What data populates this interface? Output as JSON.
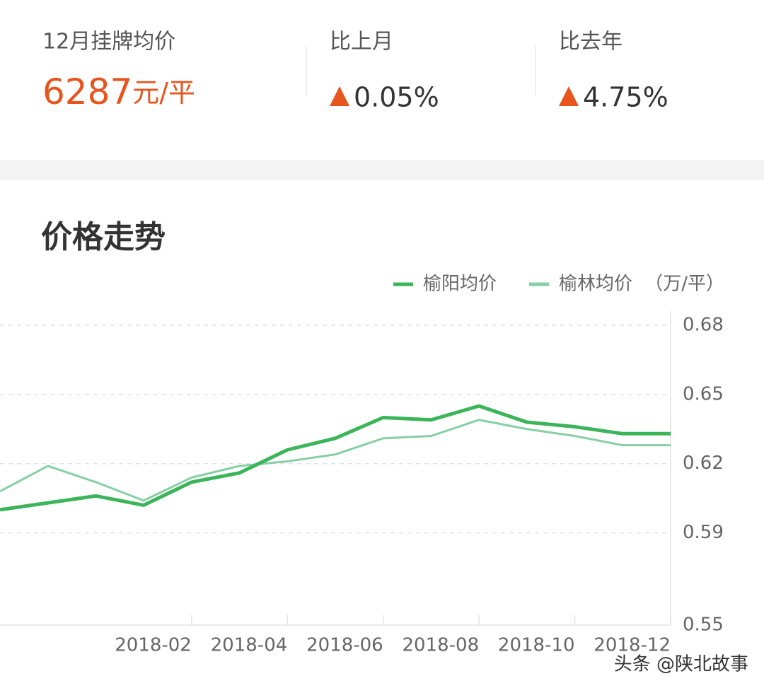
{
  "header": {
    "stats": [
      {
        "label": "12月挂牌均价",
        "value": "6287",
        "unit": "元/平"
      },
      {
        "label": "比上月",
        "value": "0.05%"
      },
      {
        "label": "比去年",
        "value": "4.75%"
      }
    ]
  },
  "chart_data": {
    "type": "line",
    "title": "价格走势",
    "y_unit": "（万/平）",
    "categories": [
      null,
      null,
      null,
      null,
      "2018-02",
      null,
      "2018-04",
      null,
      "2018-06",
      null,
      "2018-08",
      null,
      "2018-10",
      null,
      "2018-12"
    ],
    "series": [
      {
        "name": "榆阳均价",
        "color": "#3cb55a",
        "values": [
          0.6,
          0.603,
          0.606,
          0.602,
          0.612,
          0.616,
          0.626,
          0.631,
          0.64,
          0.639,
          0.645,
          0.638,
          0.636,
          0.633,
          0.633
        ]
      },
      {
        "name": "榆林均价",
        "color": "#86cfa4",
        "values": [
          0.608,
          0.619,
          0.612,
          0.604,
          0.614,
          0.619,
          0.621,
          0.624,
          0.631,
          0.632,
          0.639,
          0.635,
          0.632,
          0.628,
          0.628
        ]
      }
    ],
    "ylim": [
      0.55,
      0.68
    ],
    "yticks": [
      0.55,
      0.59,
      0.62,
      0.65,
      0.68
    ],
    "grid": true
  },
  "watermark": "头条 @陕北故事"
}
